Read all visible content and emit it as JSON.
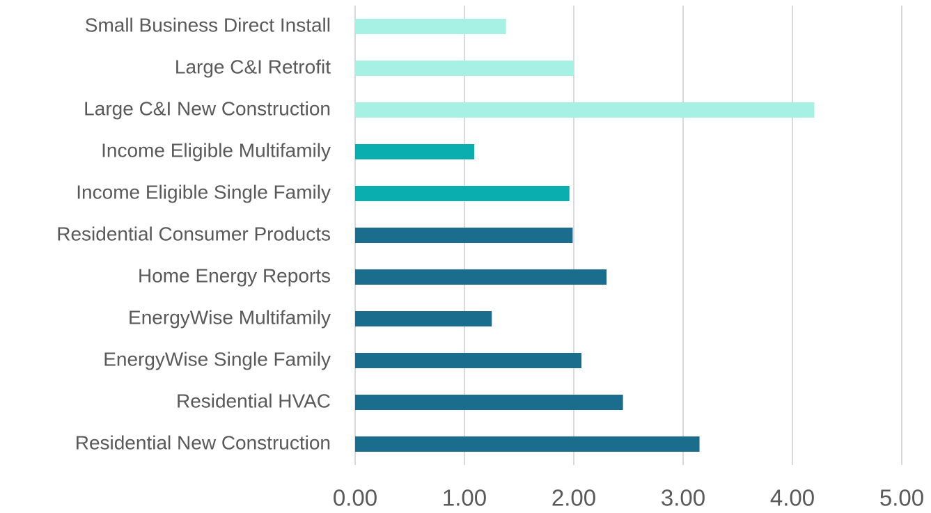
{
  "chart_data": {
    "type": "bar",
    "orientation": "horizontal",
    "categories": [
      "Small Business Direct Install",
      "Large C&I Retrofit",
      "Large C&I New Construction",
      "Income Eligible Multifamily",
      "Income Eligible Single Family",
      "Residential Consumer Products",
      "Home Energy Reports",
      "EnergyWise Multifamily",
      "EnergyWise Single Family",
      "Residential HVAC",
      "Residential New Construction"
    ],
    "values": [
      1.38,
      2.0,
      4.2,
      1.09,
      1.96,
      1.99,
      2.3,
      1.25,
      2.07,
      2.45,
      3.15
    ],
    "colors": [
      "#a6f1e4",
      "#a6f1e4",
      "#a6f1e4",
      "#0aaeae",
      "#0aaeae",
      "#1a6d8c",
      "#1a6d8c",
      "#1a6d8c",
      "#1a6d8c",
      "#1a6d8c",
      "#1a6d8c"
    ],
    "xlim": [
      0,
      5
    ],
    "xticks": [
      {
        "value": 0,
        "label": "0.00"
      },
      {
        "value": 1,
        "label": "1.00"
      },
      {
        "value": 2,
        "label": "2.00"
      },
      {
        "value": 3,
        "label": "3.00"
      },
      {
        "value": 4,
        "label": "4.00"
      },
      {
        "value": 5,
        "label": "5.00"
      }
    ],
    "grid": true
  }
}
